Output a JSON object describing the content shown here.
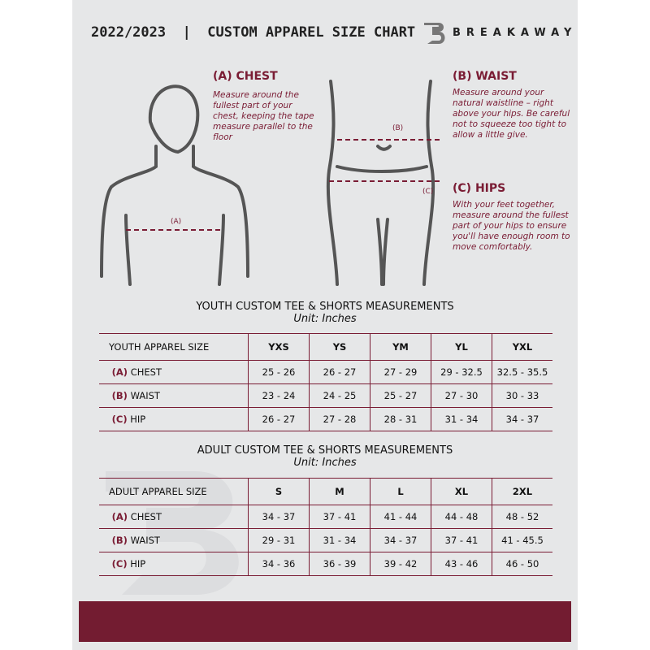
{
  "header": {
    "title": "2022/2023  |  CUSTOM APPAREL SIZE CHART",
    "brand": "BREAKAWAY"
  },
  "measures": {
    "chest": {
      "title": "(A) CHEST",
      "desc": "Measure around the fullest part of your chest, keeping the tape measure parallel to the floor",
      "marker": "(A)"
    },
    "waist": {
      "title": "(B) WAIST",
      "desc": "Measure around your natural waistline – right above your hips. Be careful not to squeeze too tight to allow a little give.",
      "marker": "(B)"
    },
    "hips": {
      "title": "(C) HIPS",
      "desc": "With your feet together, measure around the fullest part of your hips to ensure you'll have enough room to move comfortably.",
      "marker": "(C)"
    }
  },
  "youth": {
    "title": "YOUTH CUSTOM TEE & SHORTS MEASUREMENTS",
    "unit": "Unit: Inches",
    "header": [
      "YOUTH APPAREL SIZE",
      "YXS",
      "YS",
      "YM",
      "YL",
      "YXL"
    ],
    "rows": [
      {
        "code": "(A)",
        "name": "CHEST",
        "values": [
          "25 - 26",
          "26 - 27",
          "27 - 29",
          "29 - 32.5",
          "32.5 - 35.5"
        ]
      },
      {
        "code": "(B)",
        "name": "WAIST",
        "values": [
          "23 - 24",
          "24 - 25",
          "25 - 27",
          "27 - 30",
          "30 - 33"
        ]
      },
      {
        "code": "(C)",
        "name": "HIP",
        "values": [
          "26 - 27",
          "27 - 28",
          "28 - 31",
          "31 - 34",
          "34 - 37"
        ]
      }
    ]
  },
  "adult": {
    "title": "ADULT CUSTOM TEE & SHORTS MEASUREMENTS",
    "unit": "Unit: Inches",
    "header": [
      "ADULT APPAREL SIZE",
      "S",
      "M",
      "L",
      "XL",
      "2XL"
    ],
    "rows": [
      {
        "code": "(A)",
        "name": "CHEST",
        "values": [
          "34 - 37",
          "37 - 41",
          "41 - 44",
          "44 - 48",
          "48 - 52"
        ]
      },
      {
        "code": "(B)",
        "name": "WAIST",
        "values": [
          "29 - 31",
          "31 - 34",
          "34 - 37",
          "37 - 41",
          "41 - 45.5"
        ]
      },
      {
        "code": "(C)",
        "name": "HIP",
        "values": [
          "34 - 36",
          "36 - 39",
          "39 - 42",
          "43 - 46",
          "46 - 50"
        ]
      }
    ]
  },
  "colors": {
    "accent": "#731c31",
    "panel": "#e6e7e8"
  }
}
